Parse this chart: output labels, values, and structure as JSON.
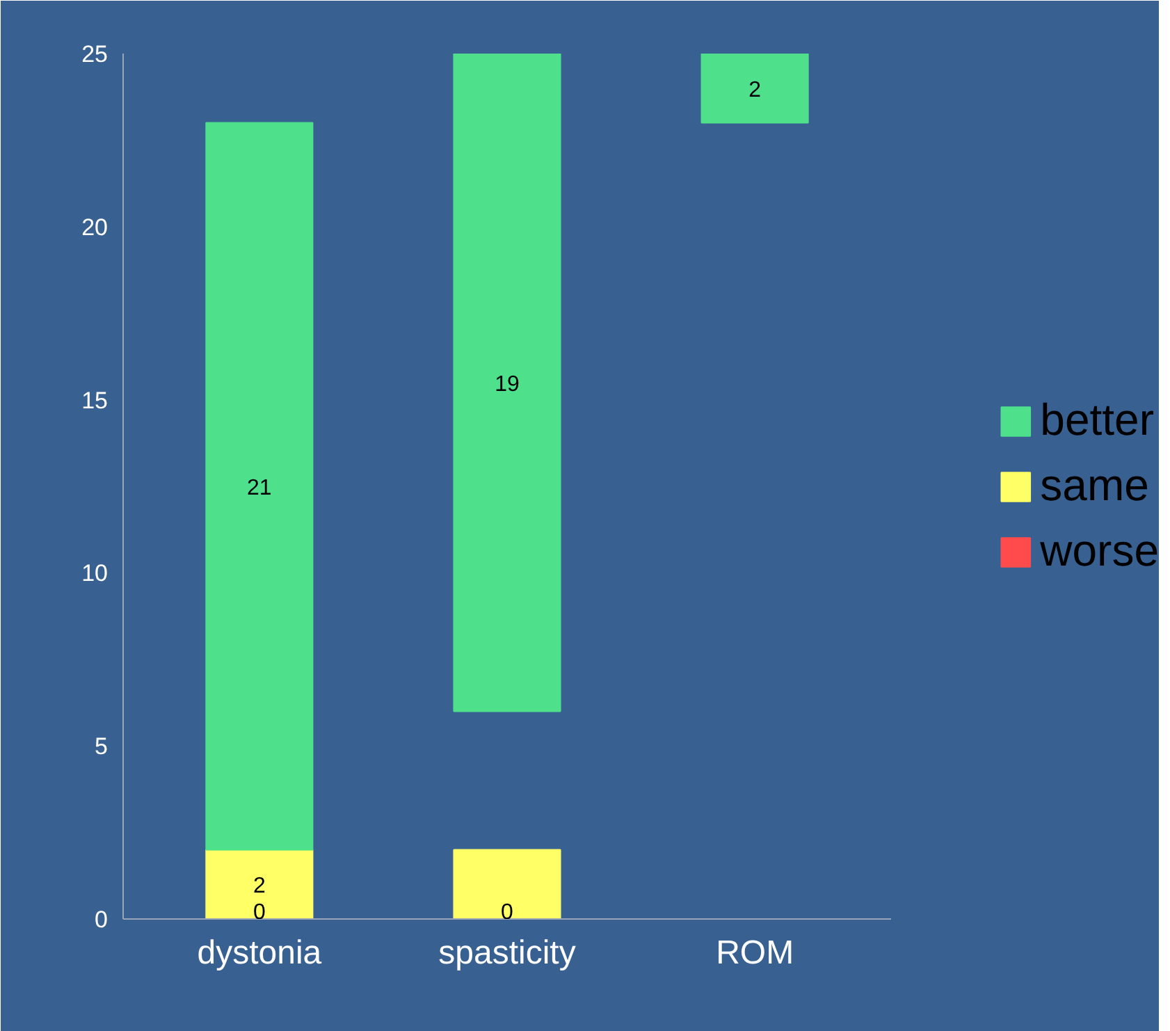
{
  "chart_data": {
    "type": "bar",
    "categories": [
      "dystonia",
      "spasticity",
      "ROM"
    ],
    "series": [
      {
        "name": "worse",
        "color": "#ff4b4b",
        "values": [
          0,
          0,
          null
        ],
        "base": [
          0,
          0,
          null
        ],
        "value_labels": [
          "0",
          "0",
          null
        ]
      },
      {
        "name": "same",
        "color": "#ffff66",
        "values": [
          2,
          2,
          null
        ],
        "base": [
          0,
          0,
          null
        ],
        "value_labels": [
          "2",
          null,
          null
        ]
      },
      {
        "name": "better",
        "color": "#4ee08a",
        "values": [
          21,
          19,
          2
        ],
        "base": [
          2,
          6,
          23
        ],
        "value_labels": [
          "21",
          "19",
          "2"
        ]
      }
    ],
    "ylim": [
      0,
      25
    ],
    "yticks": [
      0,
      5,
      10,
      15,
      20,
      25
    ],
    "grid": false,
    "legend": "right"
  }
}
